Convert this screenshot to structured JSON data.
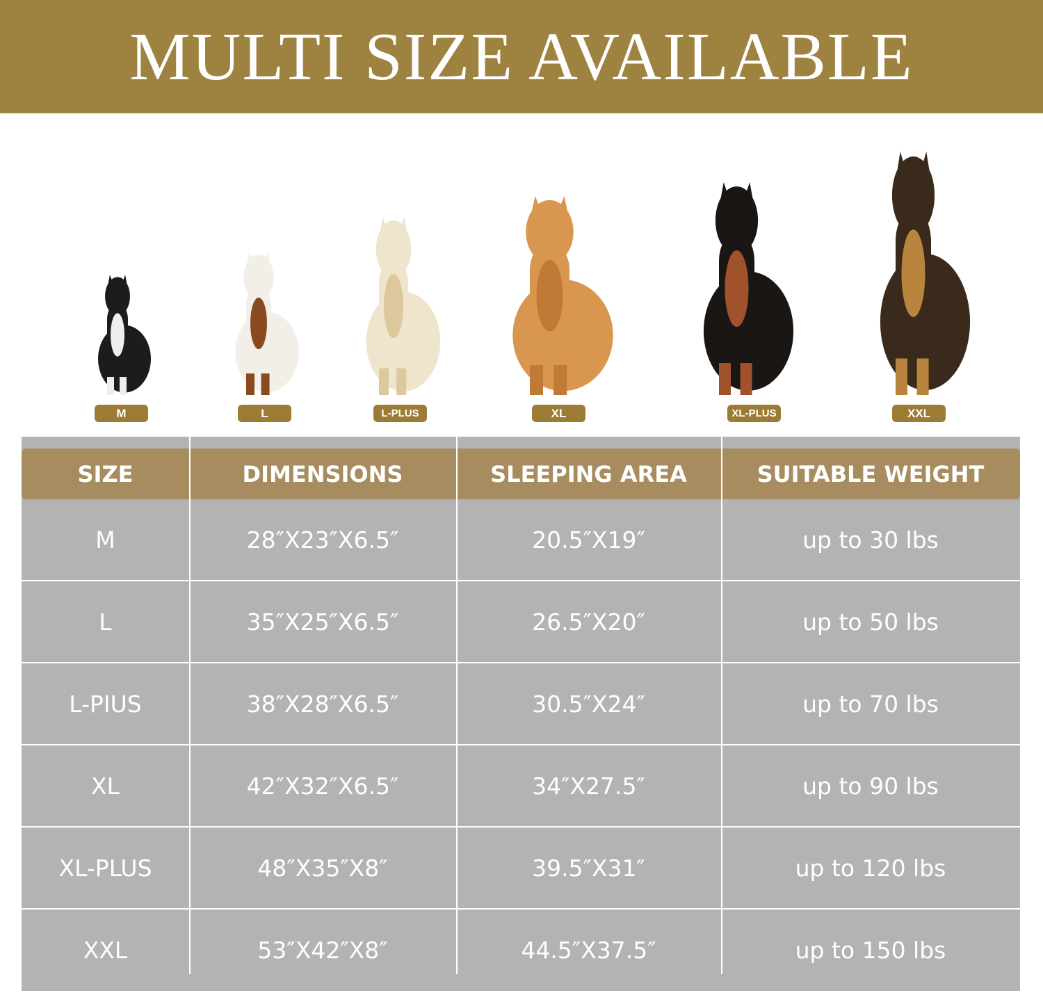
{
  "banner": {
    "title": "MULTI SIZE AVAILABLE",
    "color": "#9e8240"
  },
  "dogs": [
    {
      "badge": "M",
      "icon": "french-bulldog-image"
    },
    {
      "badge": "L",
      "icon": "beagle-image"
    },
    {
      "badge": "L-PLUS",
      "icon": "golden-retriever-cream-image"
    },
    {
      "badge": "XL",
      "icon": "golden-retriever-image"
    },
    {
      "badge": "XL-PLUS",
      "icon": "doberman-image"
    },
    {
      "badge": "XXL",
      "icon": "german-shepherd-image"
    }
  ],
  "table": {
    "headers": [
      "SIZE",
      "DIMENSIONS",
      "SLEEPING AREA",
      "SUITABLE WEIGHT"
    ],
    "rows": [
      [
        "M",
        "28″X23″X6.5″",
        "20.5″X19″",
        "up to 30 lbs"
      ],
      [
        "L",
        "35″X25″X6.5″",
        "26.5″X20″",
        "up to 50 lbs"
      ],
      [
        "L-PIUS",
        "38″X28″X6.5″",
        "30.5″X24″",
        "up to 70 lbs"
      ],
      [
        "XL",
        "42″X32″X6.5″",
        "34″X27.5″",
        "up to 90 lbs"
      ],
      [
        "XL-PLUS",
        "48″X35″X8″",
        "39.5″X31″",
        "up to 120 lbs"
      ],
      [
        "XXL",
        "53″X42″X8″",
        "44.5″X37.5″",
        "up to 150 lbs"
      ]
    ],
    "header_color": "#a68c5e",
    "body_color": "#b3b3b3"
  }
}
